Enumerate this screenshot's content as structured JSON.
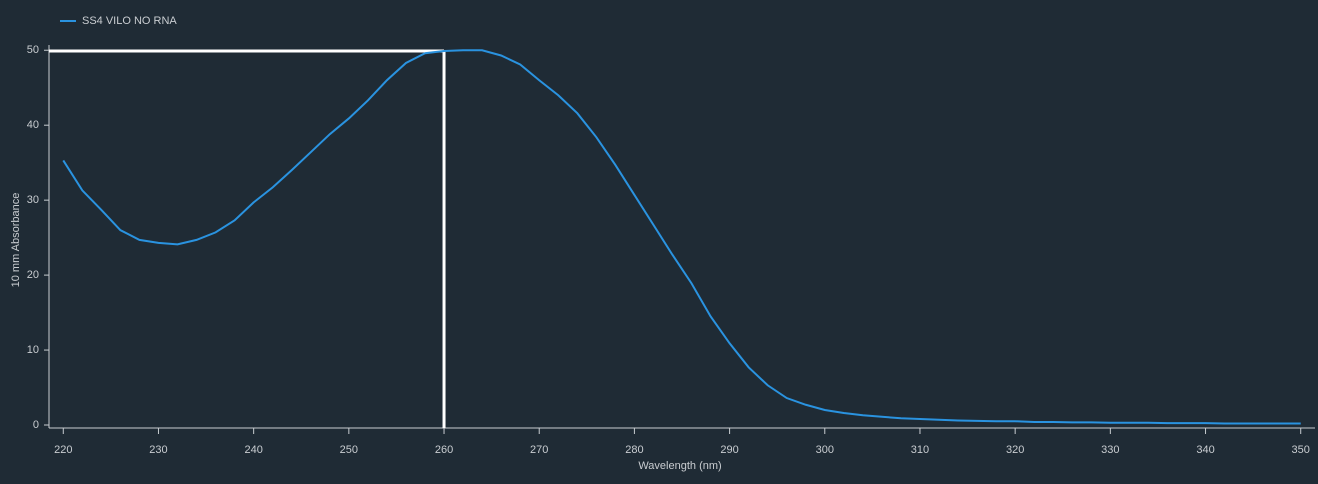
{
  "chart_data": {
    "type": "line",
    "x_label": "Wavelength (nm)",
    "y_label": "10 mm Absorbance",
    "x": [
      220,
      222,
      224,
      226,
      228,
      230,
      232,
      234,
      236,
      238,
      240,
      242,
      244,
      246,
      248,
      250,
      252,
      254,
      256,
      258,
      260,
      262,
      264,
      266,
      268,
      270,
      272,
      274,
      276,
      278,
      280,
      282,
      284,
      286,
      288,
      290,
      292,
      294,
      296,
      298,
      300,
      302,
      304,
      306,
      308,
      310,
      312,
      314,
      316,
      318,
      320,
      322,
      324,
      326,
      328,
      330,
      332,
      334,
      336,
      338,
      340,
      342,
      344,
      346,
      348,
      350
    ],
    "series": [
      {
        "name": "SS4 VILO NO RNA",
        "color": "#2a93e0",
        "values": [
          35.3,
          31.3,
          28.7,
          26,
          24.7,
          24.3,
          24.1,
          24.7,
          25.7,
          27.3,
          29.7,
          31.7,
          34,
          36.4,
          38.8,
          40.9,
          43.3,
          46,
          48.3,
          49.6,
          49.9,
          50,
          50,
          49.3,
          48.1,
          46,
          44,
          41.6,
          38.4,
          34.7,
          30.7,
          26.7,
          22.7,
          18.9,
          14.5,
          10.9,
          7.7,
          5.3,
          3.6,
          2.7,
          2,
          1.6,
          1.3,
          1.1,
          0.9,
          0.8,
          0.7,
          0.6,
          0.55,
          0.5,
          0.5,
          0.4,
          0.4,
          0.35,
          0.35,
          0.3,
          0.3,
          0.3,
          0.25,
          0.25,
          0.25,
          0.2,
          0.2,
          0.2,
          0.2,
          0.2
        ]
      }
    ],
    "xlim": [
      218.5,
      351.5
    ],
    "ylim": [
      -0.4,
      50.7
    ],
    "xticks": [
      220,
      230,
      240,
      250,
      260,
      270,
      280,
      290,
      300,
      310,
      320,
      330,
      340,
      350
    ],
    "yticks": [
      0,
      10,
      20,
      30,
      40,
      50
    ],
    "peak_marker": {
      "x": 260,
      "y": 49.9
    },
    "legend": "top-left"
  }
}
